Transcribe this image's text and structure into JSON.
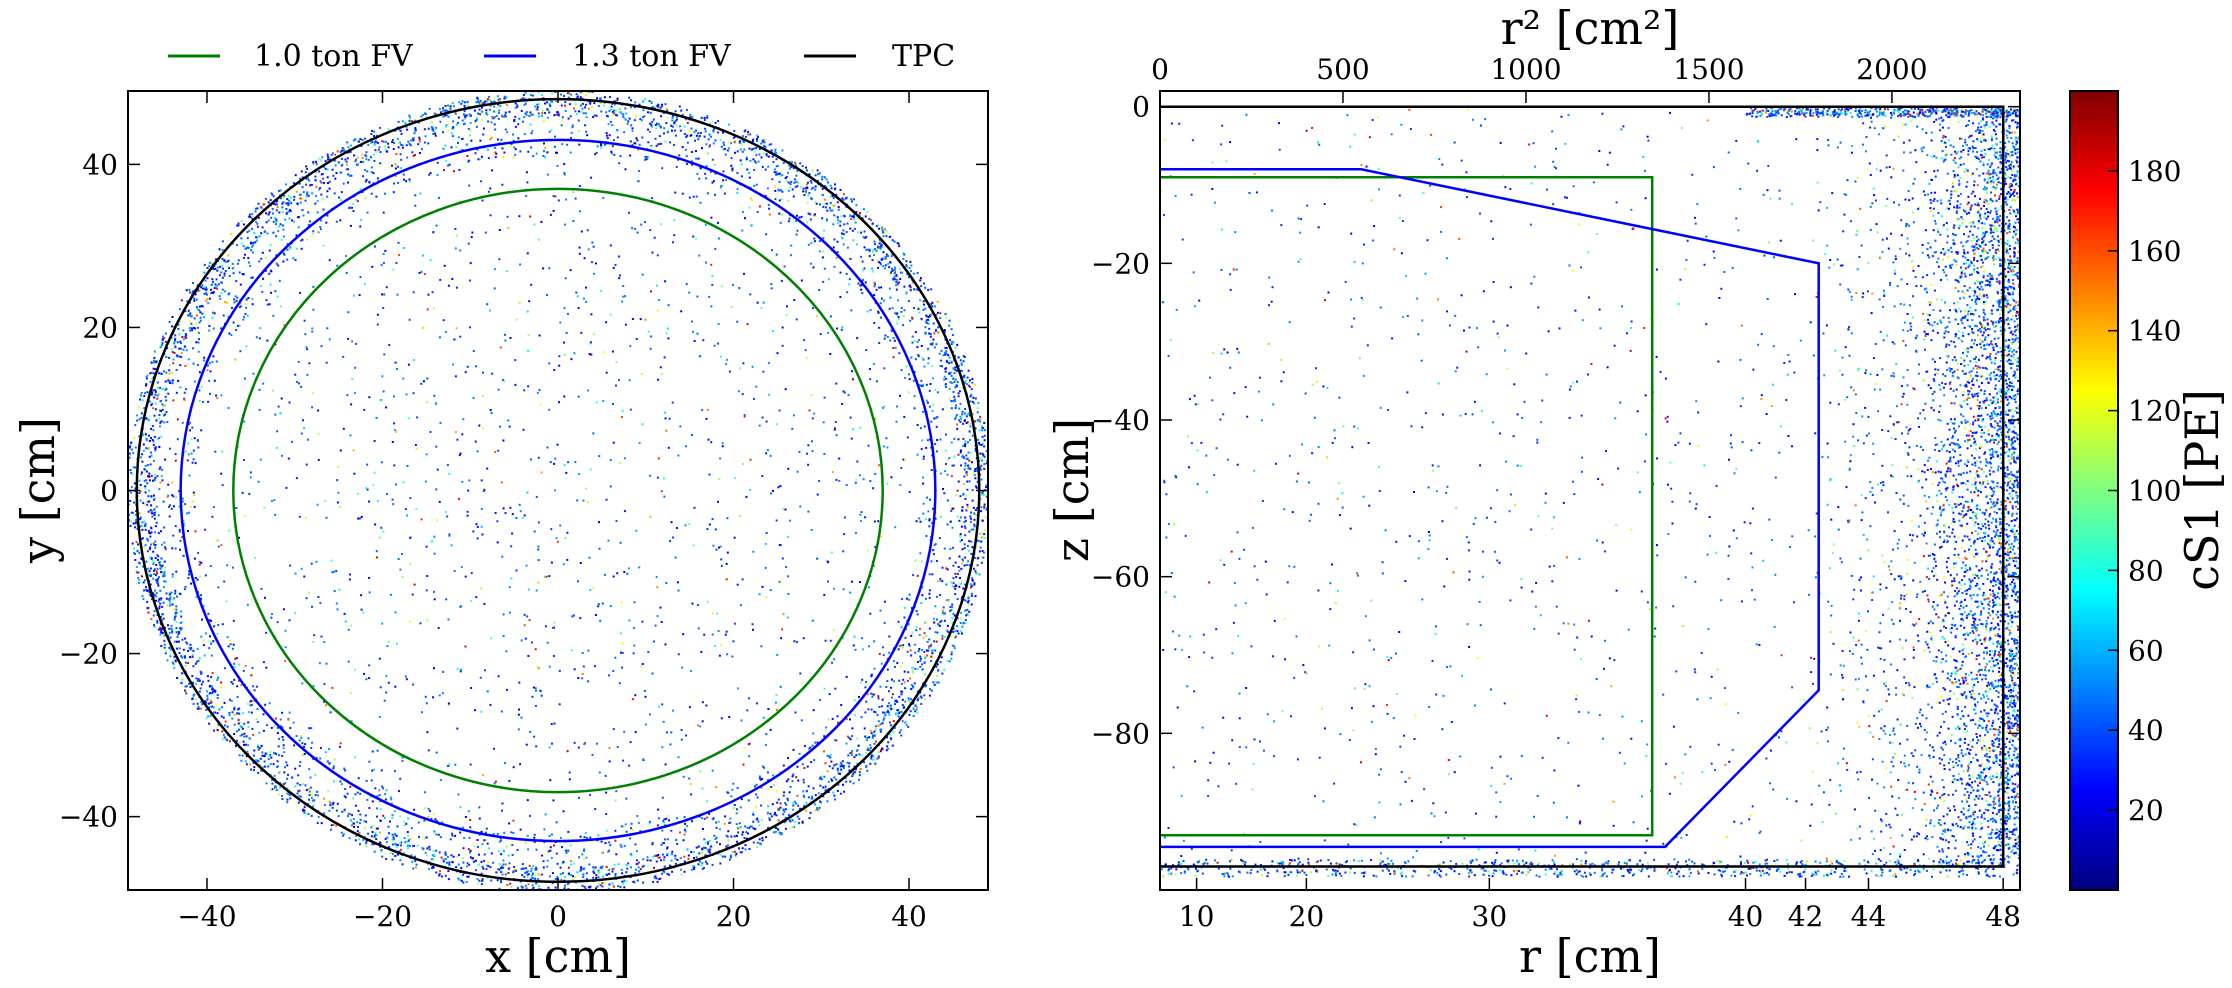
{
  "chart_data": [
    {
      "panel": "left",
      "type": "scatter",
      "xlabel": "x [cm]",
      "ylabel": "y [cm]",
      "xlim": [
        -49,
        49
      ],
      "ylim": [
        -49,
        49
      ],
      "xticks": [
        -40,
        -20,
        0,
        20,
        40
      ],
      "yticks": [
        -40,
        -20,
        0,
        20,
        40
      ],
      "xtick_labels": [
        "−40",
        "−20",
        "0",
        "20",
        "40"
      ],
      "ytick_labels": [
        "−40",
        "−20",
        "0",
        "20",
        "40"
      ],
      "legend": {
        "placement": "top",
        "entries": [
          {
            "label": "1.0 ton FV",
            "color": "#008000"
          },
          {
            "label": "1.3 ton FV",
            "color": "#0000ff"
          },
          {
            "label": "TPC",
            "color": "#000000"
          }
        ]
      },
      "series": [
        {
          "name": "1.0 ton FV",
          "shape": "circle",
          "center": [
            0,
            0
          ],
          "radius": 37.0,
          "color": "#008000"
        },
        {
          "name": "1.3 ton FV",
          "shape": "circle",
          "center": [
            0,
            0
          ],
          "radius": 43.0,
          "color": "#0000ff"
        },
        {
          "name": "TPC",
          "shape": "circle",
          "center": [
            0,
            0
          ],
          "radius": 48.0,
          "color": "#000000"
        }
      ],
      "scatter_note_density": "events dense near TPC edge (r > 42 cm), sparse interior"
    },
    {
      "panel": "right",
      "type": "scatter",
      "xlabel": "r [cm]",
      "x2label": "r² [cm²]",
      "ylabel": "z [cm]",
      "r2_lim": [
        0,
        2350
      ],
      "ylim": [
        -100,
        2
      ],
      "r_ticks": [
        10,
        20,
        30,
        40,
        42,
        44,
        48
      ],
      "r_tick_labels": [
        "10",
        "20",
        "30",
        "40",
        "42",
        "44",
        "48"
      ],
      "r2_ticks": [
        0,
        500,
        1000,
        1500,
        2000
      ],
      "r2_tick_labels": [
        "0",
        "500",
        "1000",
        "1500",
        "2000"
      ],
      "yticks": [
        0,
        -20,
        -40,
        -60,
        -80
      ],
      "ytick_labels": [
        "0",
        "−20",
        "−40",
        "−60",
        "−80"
      ],
      "series": [
        {
          "name": "1.0 ton FV",
          "color": "#008000",
          "r2": [
            0,
            1345,
            1345,
            0
          ],
          "z": [
            -9,
            -9,
            -93,
            -93
          ]
        },
        {
          "name": "1.3 ton FV",
          "color": "#0000ff",
          "r2": [
            0,
            550,
            1800,
            1800,
            1380,
            0
          ],
          "z": [
            -8,
            -8,
            -20,
            -74.5,
            -94.5,
            -94.5
          ]
        },
        {
          "name": "TPC",
          "color": "#000000",
          "r2": [
            0,
            2304,
            2304,
            0
          ],
          "z": [
            0,
            0,
            -97,
            -97
          ]
        }
      ],
      "colorbar": {
        "label": "cS1 [PE]",
        "min": 0,
        "max": 200,
        "ticks": [
          20,
          40,
          60,
          80,
          100,
          120,
          140,
          160,
          180
        ],
        "tick_labels": [
          "20",
          "40",
          "60",
          "80",
          "100",
          "120",
          "140",
          "160",
          "180"
        ],
        "colormap": "jet"
      }
    }
  ]
}
